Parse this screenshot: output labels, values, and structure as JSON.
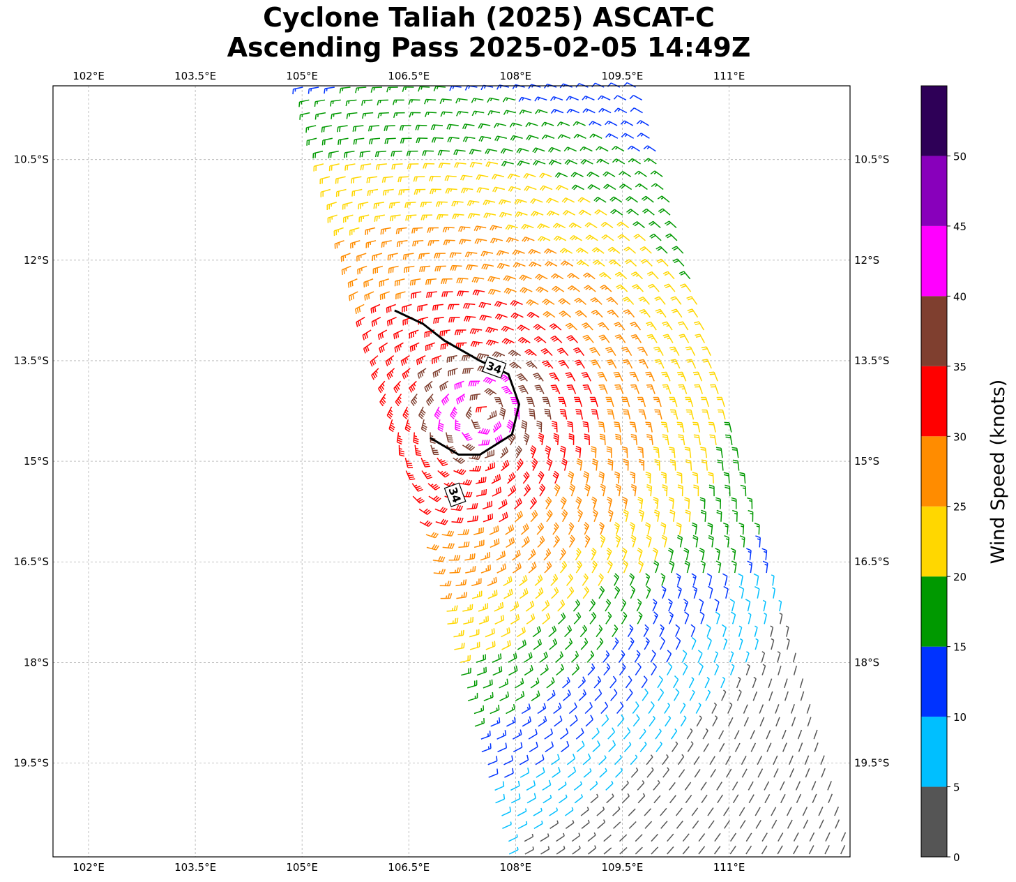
{
  "title": {
    "line1": "Cyclone Taliah (2025) ASCAT-C",
    "line2": "Ascending Pass 2025-02-05 14:49Z"
  },
  "map": {
    "lon_range": [
      101.5,
      112.7
    ],
    "lat_range": [
      -20.9,
      -9.4
    ],
    "lon_ticks": [
      {
        "value": 102,
        "label": "102°E"
      },
      {
        "value": 103.5,
        "label": "103.5°E"
      },
      {
        "value": 105,
        "label": "105°E"
      },
      {
        "value": 106.5,
        "label": "106.5°E"
      },
      {
        "value": 108,
        "label": "108°E"
      },
      {
        "value": 109.5,
        "label": "109.5°E"
      },
      {
        "value": 111,
        "label": "111°E"
      }
    ],
    "lat_ticks": [
      {
        "value": -10.5,
        "label": "10.5°S"
      },
      {
        "value": -12,
        "label": "12°S"
      },
      {
        "value": -13.5,
        "label": "13.5°S"
      },
      {
        "value": -15,
        "label": "15°S"
      },
      {
        "value": -16.5,
        "label": "16.5°S"
      },
      {
        "value": -18,
        "label": "18°S"
      },
      {
        "value": -19.5,
        "label": "19.5°S"
      }
    ],
    "gridlines": true,
    "grid_color": "#b0b0b0"
  },
  "wind_field": {
    "type": "barbs",
    "units": "knots",
    "center": {
      "lon": 107.6,
      "lat": -14.2
    },
    "swath": {
      "top_edge_lon": [
        104.9,
        109.8
      ],
      "bottom_edge_lon": [
        107.8,
        112.7
      ],
      "top_lat": -9.4,
      "bottom_lat": -20.9
    }
  },
  "contour": {
    "level": 34,
    "label": "34",
    "path": [
      [
        106.3,
        -12.75
      ],
      [
        106.7,
        -12.95
      ],
      [
        107.0,
        -13.2
      ],
      [
        107.5,
        -13.5
      ],
      [
        107.9,
        -13.7
      ],
      [
        108.05,
        -14.15
      ],
      [
        107.95,
        -14.6
      ],
      [
        107.5,
        -14.9
      ],
      [
        107.2,
        -14.9
      ],
      [
        106.8,
        -14.65
      ]
    ],
    "label_positions": [
      [
        107.7,
        -13.6
      ],
      [
        107.15,
        -15.5
      ]
    ]
  },
  "colorbar": {
    "title": "Wind Speed (knots)",
    "bounds": [
      0,
      5,
      10,
      15,
      20,
      25,
      30,
      35,
      40,
      45,
      50,
      55
    ],
    "tick_labels": [
      "0",
      "5",
      "10",
      "15",
      "20",
      "25",
      "30",
      "35",
      "40",
      "45",
      "50"
    ],
    "colors": [
      "#555555",
      "#00bfff",
      "#0033ff",
      "#009900",
      "#ffd700",
      "#ff8c00",
      "#ff0000",
      "#7f3f2f",
      "#ff00ff",
      "#8800bb",
      "#2e0057"
    ]
  }
}
